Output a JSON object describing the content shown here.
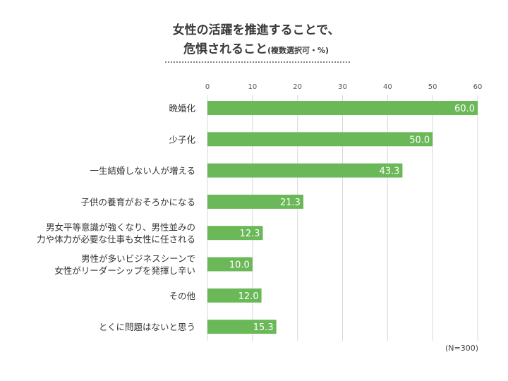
{
  "title": {
    "line1": "女性の活躍を推進することで、",
    "line2": "危惧されること",
    "note": "(複数選択可・%)"
  },
  "footnote": "(N=300)",
  "colors": {
    "bar": "#6bb858",
    "grid": "#d9d9d9",
    "label_text": "#333333"
  },
  "chart_data": {
    "type": "bar",
    "orientation": "horizontal",
    "categories": [
      [
        "晩婚化"
      ],
      [
        "少子化"
      ],
      [
        "一生結婚しない人が増える"
      ],
      [
        "子供の養育がおそろかになる"
      ],
      [
        "男女平等意識が強くなり、男性並みの",
        "力や体力が必要な仕事も女性に任される"
      ],
      [
        "男性が多いビジネスシーンで",
        "女性がリーダーシップを発揮し辛い"
      ],
      [
        "その他"
      ],
      [
        "とくに問題はないと思う"
      ]
    ],
    "values": [
      60.0,
      50.0,
      43.3,
      21.3,
      12.3,
      10.0,
      12.0,
      15.3
    ],
    "value_labels": [
      "60.0",
      "50.0",
      "43.3",
      "21.3",
      "12.3",
      "10.0",
      "12.0",
      "15.3"
    ],
    "xlim": [
      0,
      60
    ],
    "xticks": [
      0,
      10,
      20,
      30,
      40,
      50,
      60
    ],
    "grid": true
  }
}
